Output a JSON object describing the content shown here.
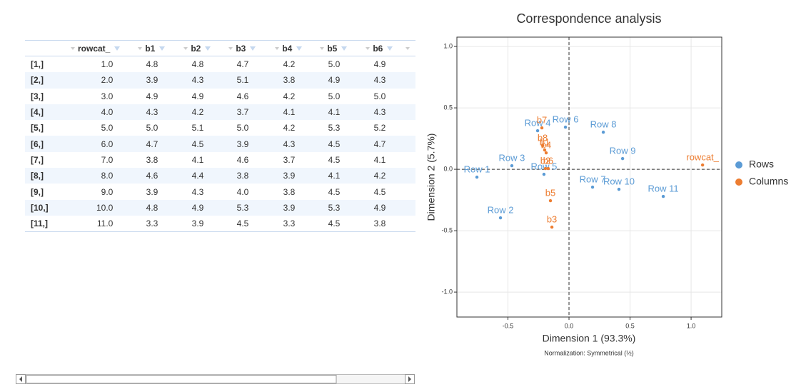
{
  "table": {
    "columns": [
      "rowcat_",
      "b1",
      "b2",
      "b3",
      "b4",
      "b5",
      "b6"
    ],
    "rows": [
      [
        "[1,]",
        "1.0",
        "4.8",
        "4.8",
        "4.7",
        "4.2",
        "5.0",
        "4.9"
      ],
      [
        "[2,]",
        "2.0",
        "3.9",
        "4.3",
        "5.1",
        "3.8",
        "4.9",
        "4.3"
      ],
      [
        "[3,]",
        "3.0",
        "4.9",
        "4.9",
        "4.6",
        "4.2",
        "5.0",
        "5.0"
      ],
      [
        "[4,]",
        "4.0",
        "4.3",
        "4.2",
        "3.7",
        "4.1",
        "4.1",
        "4.3"
      ],
      [
        "[5,]",
        "5.0",
        "5.0",
        "5.1",
        "5.0",
        "4.2",
        "5.3",
        "5.2"
      ],
      [
        "[6,]",
        "6.0",
        "4.7",
        "4.5",
        "3.9",
        "4.3",
        "4.5",
        "4.7"
      ],
      [
        "[7,]",
        "7.0",
        "3.8",
        "4.1",
        "4.6",
        "3.7",
        "4.5",
        "4.1"
      ],
      [
        "[8,]",
        "8.0",
        "4.6",
        "4.4",
        "3.8",
        "3.9",
        "4.1",
        "4.2"
      ],
      [
        "[9,]",
        "9.0",
        "3.9",
        "4.3",
        "4.0",
        "3.8",
        "4.5",
        "4.5"
      ],
      [
        "[10,]",
        "10.0",
        "4.8",
        "4.9",
        "5.3",
        "3.9",
        "5.3",
        "4.9"
      ],
      [
        "[11,]",
        "11.0",
        "3.3",
        "3.9",
        "4.5",
        "3.3",
        "4.5",
        "3.8"
      ]
    ]
  },
  "chart_data": {
    "type": "scatter",
    "title": "Correspondence analysis",
    "x_label": "Dimension 1 (93.3%)",
    "y_label": "Dimension 2 (5.7%)",
    "subtitle": "Normalization: Symmetrical (½)",
    "xlim": [
      -0.918,
      1.251
    ],
    "ylim": [
      -1.203,
      1.076
    ],
    "xticks": [
      -0.5,
      {
        "value": 0,
        "label": "0.0"
      },
      0.5,
      {
        "value": 1,
        "label": "1.0"
      }
    ],
    "yticks": [
      {
        "value": -1,
        "label": "-1.0"
      },
      -0.5,
      {
        "value": 0,
        "label": "0.0"
      },
      0.5,
      {
        "value": 1,
        "label": "1.0"
      }
    ],
    "grid": true,
    "legend": "right",
    "series": [
      {
        "name": "Rows",
        "color": "#5b9bd5",
        "labels": [
          "Row 1",
          "Row 2",
          "Row 3",
          "Row 4",
          "Row 5",
          "Row 6",
          "Row 7",
          "Row 8",
          "Row 9",
          "Row 10",
          "Row 11"
        ],
        "x": [
          -0.754,
          -0.561,
          -0.468,
          -0.257,
          -0.205,
          -0.029,
          0.193,
          0.281,
          0.439,
          0.409,
          0.772
        ],
        "values": [
          -0.064,
          -0.395,
          0.029,
          0.314,
          -0.041,
          0.343,
          -0.145,
          0.302,
          0.087,
          -0.163,
          -0.221
        ]
      },
      {
        "name": "Columns",
        "color": "#ed7d31",
        "labels": [
          "b7",
          "b8",
          "b1",
          "b4",
          "b2",
          "b6",
          "b5",
          "b3",
          "rowcat_"
        ],
        "x": [
          -0.222,
          -0.216,
          -0.199,
          -0.187,
          -0.193,
          -0.17,
          -0.152,
          -0.14,
          1.094
        ],
        "values": [
          0.337,
          0.192,
          0.157,
          0.134,
          0.006,
          0.006,
          -0.256,
          -0.471,
          0.035
        ]
      }
    ]
  }
}
